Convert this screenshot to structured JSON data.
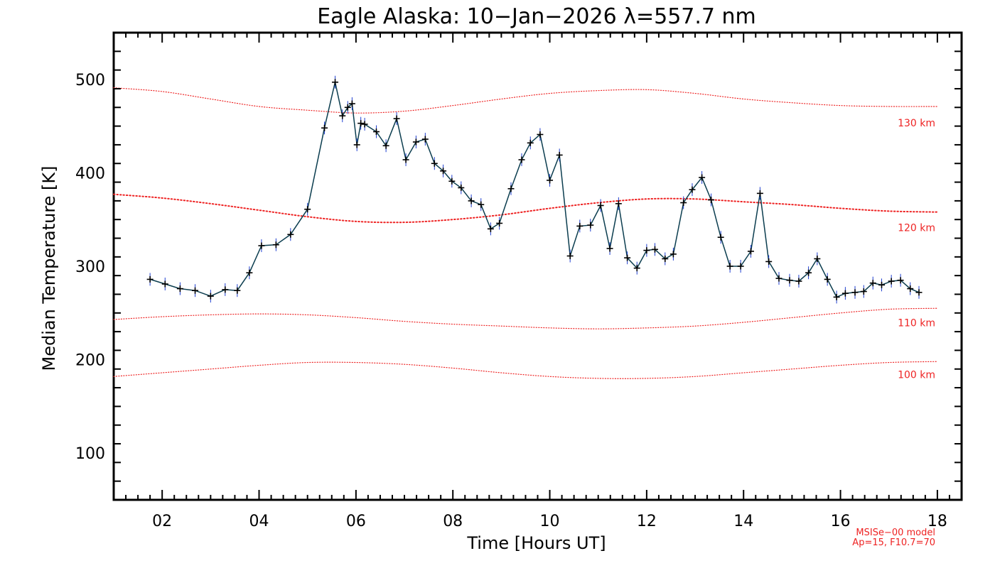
{
  "chart_data": {
    "type": "line",
    "title": "Eagle Alaska: 10−Jan−2026 λ=557.7 nm",
    "xlabel": "Time [Hours UT]",
    "ylabel": "Median Temperature [K]",
    "xlim": [
      1.0,
      18.5
    ],
    "ylim": [
      50,
      550
    ],
    "x_ticks": [
      2,
      4,
      6,
      8,
      10,
      12,
      14,
      16,
      18
    ],
    "x_tick_labels": [
      "02",
      "04",
      "06",
      "08",
      "10",
      "12",
      "14",
      "16",
      "18"
    ],
    "y_ticks": [
      100,
      200,
      300,
      400,
      500
    ],
    "y_tick_labels": [
      "100",
      "200",
      "300",
      "400",
      "500"
    ],
    "colors": {
      "data_line": "#0b3d4f",
      "data_marker": "#000000",
      "error_bar": "#1f3fcf",
      "model": "#ee2222"
    },
    "series": [
      {
        "name": "Median Temperature",
        "x": [
          1.75,
          2.06,
          2.37,
          2.68,
          3.0,
          3.3,
          3.55,
          3.8,
          4.05,
          4.35,
          4.65,
          5.0,
          5.35,
          5.57,
          5.72,
          5.83,
          5.92,
          6.02,
          6.1,
          6.18,
          6.42,
          6.62,
          6.84,
          7.03,
          7.24,
          7.43,
          7.62,
          7.8,
          7.98,
          8.17,
          8.38,
          8.58,
          8.78,
          8.96,
          9.2,
          9.42,
          9.6,
          9.8,
          10.0,
          10.2,
          10.42,
          10.62,
          10.84,
          11.05,
          11.24,
          11.42,
          11.6,
          11.8,
          12.0,
          12.17,
          12.38,
          12.55,
          12.76,
          12.94,
          13.14,
          13.33,
          13.53,
          13.72,
          13.94,
          14.15,
          14.34,
          14.52,
          14.73,
          14.95,
          15.14,
          15.34,
          15.52,
          15.73,
          15.92,
          16.1,
          16.3,
          16.48,
          16.67,
          16.85,
          17.05,
          17.24,
          17.44,
          17.62
        ],
        "y": [
          286,
          281,
          276,
          274,
          268,
          275,
          274,
          293,
          322,
          323,
          334,
          361,
          448,
          497,
          461,
          470,
          474,
          430,
          453,
          452,
          444,
          429,
          458,
          414,
          433,
          436,
          410,
          402,
          391,
          384,
          370,
          366,
          340,
          346,
          383,
          414,
          432,
          441,
          392,
          419,
          311,
          343,
          344,
          365,
          319,
          367,
          309,
          298,
          317,
          318,
          308,
          313,
          368,
          382,
          395,
          371,
          331,
          300,
          300,
          316,
          378,
          305,
          287,
          285,
          284,
          293,
          308,
          286,
          267,
          271,
          272,
          273,
          282,
          280,
          284,
          285,
          276,
          272
        ]
      }
    ],
    "model_curves": [
      {
        "label": "130 km",
        "x": [
          1.0,
          2.0,
          3.0,
          4.0,
          5.0,
          6.0,
          7.0,
          8.0,
          9.0,
          10.0,
          11.0,
          12.0,
          13.0,
          14.0,
          15.0,
          16.0,
          17.0,
          18.0
        ],
        "y": [
          491,
          487,
          479,
          471,
          467,
          464,
          466,
          472,
          479,
          485,
          488,
          489,
          485,
          479,
          475,
          472,
          471,
          471
        ]
      },
      {
        "label": "120 km",
        "x": [
          1.0,
          2.0,
          3.0,
          4.0,
          5.0,
          6.0,
          7.0,
          8.0,
          9.0,
          10.0,
          11.0,
          12.0,
          13.0,
          14.0,
          15.0,
          16.0,
          17.0,
          18.0
        ],
        "y": [
          377,
          373,
          367,
          360,
          353,
          348,
          347,
          350,
          355,
          362,
          368,
          372,
          372,
          369,
          366,
          362,
          359,
          358
        ]
      },
      {
        "label": "110 km",
        "x": [
          1.0,
          2.0,
          3.0,
          4.0,
          5.0,
          6.0,
          7.0,
          8.0,
          9.0,
          10.0,
          11.0,
          12.0,
          13.0,
          14.0,
          15.0,
          16.0,
          17.0,
          18.0
        ],
        "y": [
          243,
          246,
          248,
          249,
          248,
          245,
          241,
          238,
          236,
          234,
          233,
          234,
          236,
          240,
          245,
          250,
          254,
          255
        ]
      },
      {
        "label": "100 km",
        "x": [
          1.0,
          2.0,
          3.0,
          4.0,
          5.0,
          6.0,
          7.0,
          8.0,
          9.0,
          10.0,
          11.0,
          12.0,
          13.0,
          14.0,
          15.0,
          16.0,
          17.0,
          18.0
        ],
        "y": [
          182,
          186,
          190,
          194,
          197,
          197,
          195,
          191,
          186,
          182,
          180,
          180,
          182,
          186,
          190,
          194,
          197,
          198
        ]
      }
    ],
    "footnote": [
      "MSISe−00 model",
      "Ap=15, F10.7=70"
    ]
  }
}
